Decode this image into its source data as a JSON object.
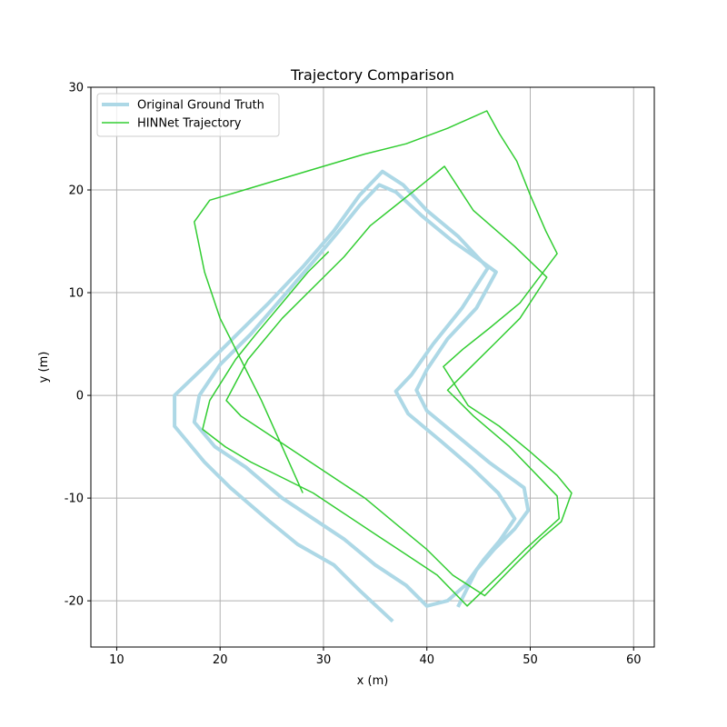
{
  "chart_data": {
    "type": "line",
    "title": "Trajectory Comparison",
    "xlabel": "x (m)",
    "ylabel": "y (m)",
    "xlim": [
      7.5,
      62
    ],
    "ylim": [
      -24.5,
      30
    ],
    "xticks": [
      10,
      20,
      30,
      40,
      50,
      60
    ],
    "yticks": [
      -20,
      -10,
      0,
      10,
      20,
      30
    ],
    "grid": true,
    "legend_position": "upper-left",
    "series": [
      {
        "name": "Original Ground Truth",
        "color": "#add8e6",
        "line_width": 4,
        "points": [
          [
            36.7,
            -22.0
          ],
          [
            33.5,
            -19.0
          ],
          [
            31.0,
            -16.5
          ],
          [
            27.5,
            -14.5
          ],
          [
            24.7,
            -12.2
          ],
          [
            21.0,
            -9.0
          ],
          [
            18.5,
            -6.5
          ],
          [
            15.6,
            -3.0
          ],
          [
            15.6,
            0.0
          ],
          [
            18.7,
            3.0
          ],
          [
            21.7,
            6.0
          ],
          [
            24.7,
            9.0
          ],
          [
            28.0,
            12.5
          ],
          [
            31.0,
            16.0
          ],
          [
            33.5,
            19.5
          ],
          [
            35.7,
            21.8
          ],
          [
            37.7,
            20.5
          ],
          [
            40.0,
            18.0
          ],
          [
            43.0,
            15.5
          ],
          [
            45.9,
            12.4
          ],
          [
            43.4,
            8.5
          ],
          [
            40.6,
            5.0
          ],
          [
            38.5,
            2.0
          ],
          [
            37.0,
            0.4
          ],
          [
            38.2,
            -1.8
          ],
          [
            41.4,
            -4.5
          ],
          [
            44.3,
            -7.0
          ],
          [
            46.9,
            -9.5
          ],
          [
            48.5,
            -12.0
          ],
          [
            47.0,
            -14.2
          ],
          [
            45.5,
            -16.0
          ],
          [
            43.7,
            -18.5
          ],
          [
            42.0,
            -20.0
          ],
          [
            40.0,
            -20.5
          ],
          [
            38.0,
            -18.5
          ],
          [
            35.0,
            -16.5
          ],
          [
            32.0,
            -14.0
          ],
          [
            29.0,
            -12.0
          ],
          [
            26.0,
            -10.0
          ],
          [
            22.5,
            -7.0
          ],
          [
            19.5,
            -5.0
          ],
          [
            17.5,
            -2.6
          ],
          [
            18.0,
            0.0
          ],
          [
            20.0,
            3.0
          ],
          [
            23.0,
            6.0
          ],
          [
            26.0,
            9.5
          ],
          [
            29.0,
            13.0
          ],
          [
            31.5,
            16.0
          ],
          [
            33.5,
            18.5
          ],
          [
            35.4,
            20.5
          ],
          [
            37.0,
            19.8
          ],
          [
            39.5,
            17.5
          ],
          [
            42.5,
            15.0
          ],
          [
            44.8,
            13.4
          ],
          [
            46.7,
            12.0
          ],
          [
            44.8,
            8.5
          ],
          [
            42.0,
            5.5
          ],
          [
            40.0,
            2.5
          ],
          [
            39.0,
            0.5
          ],
          [
            40.0,
            -1.5
          ],
          [
            43.0,
            -4.0
          ],
          [
            46.0,
            -6.5
          ],
          [
            49.4,
            -9.0
          ],
          [
            49.8,
            -11.2
          ],
          [
            48.5,
            -13.0
          ],
          [
            46.5,
            -15.0
          ],
          [
            44.8,
            -17.0
          ],
          [
            43.0,
            -20.6
          ]
        ]
      },
      {
        "name": "HINNet Trajectory",
        "color": "#32cd32",
        "line_width": 1.5,
        "points": [
          [
            30.5,
            14.0
          ],
          [
            28.5,
            12.0
          ],
          [
            26.0,
            9.0
          ],
          [
            23.5,
            6.0
          ],
          [
            21.5,
            3.5
          ],
          [
            19.0,
            -0.5
          ],
          [
            18.3,
            -3.3
          ],
          [
            20.5,
            -5.0
          ],
          [
            23.0,
            -6.5
          ],
          [
            26.0,
            -8.0
          ],
          [
            29.0,
            -9.5
          ],
          [
            32.0,
            -11.5
          ],
          [
            35.0,
            -13.5
          ],
          [
            38.0,
            -15.5
          ],
          [
            41.0,
            -17.5
          ],
          [
            43.9,
            -20.5
          ],
          [
            47.0,
            -17.5
          ],
          [
            49.5,
            -15.0
          ],
          [
            52.8,
            -12.0
          ],
          [
            52.6,
            -9.8
          ],
          [
            48.0,
            -5.0
          ],
          [
            44.5,
            -2.0
          ],
          [
            42.0,
            0.5
          ],
          [
            44.0,
            2.5
          ],
          [
            46.5,
            5.0
          ],
          [
            49.0,
            7.5
          ],
          [
            51.6,
            11.5
          ],
          [
            48.5,
            14.5
          ],
          [
            44.5,
            18.0
          ],
          [
            41.7,
            22.3
          ],
          [
            39.5,
            20.5
          ],
          [
            37.0,
            18.5
          ],
          [
            34.5,
            16.5
          ],
          [
            32.0,
            13.5
          ],
          [
            29.0,
            10.5
          ],
          [
            26.0,
            7.5
          ],
          [
            22.7,
            3.5
          ],
          [
            20.6,
            -0.5
          ],
          [
            22.0,
            -2.0
          ],
          [
            25.0,
            -4.0
          ],
          [
            28.0,
            -6.0
          ],
          [
            31.0,
            -8.0
          ],
          [
            34.0,
            -10.0
          ],
          [
            37.0,
            -12.5
          ],
          [
            40.0,
            -15.0
          ],
          [
            42.5,
            -17.5
          ],
          [
            45.6,
            -19.5
          ],
          [
            48.5,
            -16.5
          ],
          [
            51.0,
            -14.0
          ],
          [
            53.0,
            -12.3
          ],
          [
            54.0,
            -9.5
          ],
          [
            52.6,
            -7.8
          ],
          [
            50.0,
            -5.5
          ],
          [
            47.0,
            -3.0
          ],
          [
            44.0,
            -1.0
          ],
          [
            41.6,
            2.8
          ],
          [
            43.5,
            4.5
          ],
          [
            46.0,
            6.5
          ],
          [
            49.0,
            9.0
          ],
          [
            52.6,
            13.8
          ],
          [
            51.5,
            16.0
          ],
          [
            50.0,
            19.5
          ],
          [
            48.7,
            22.8
          ],
          [
            47.0,
            25.5
          ],
          [
            45.8,
            27.7
          ],
          [
            42.0,
            26.0
          ],
          [
            38.0,
            24.5
          ],
          [
            34.0,
            23.5
          ],
          [
            29.0,
            22.0
          ],
          [
            24.0,
            20.5
          ],
          [
            19.0,
            19.0
          ],
          [
            17.5,
            16.9
          ],
          [
            18.5,
            12.0
          ],
          [
            20.0,
            7.5
          ],
          [
            22.0,
            3.5
          ],
          [
            24.0,
            -0.5
          ],
          [
            26.0,
            -5.0
          ],
          [
            28.0,
            -9.5
          ]
        ]
      }
    ]
  }
}
